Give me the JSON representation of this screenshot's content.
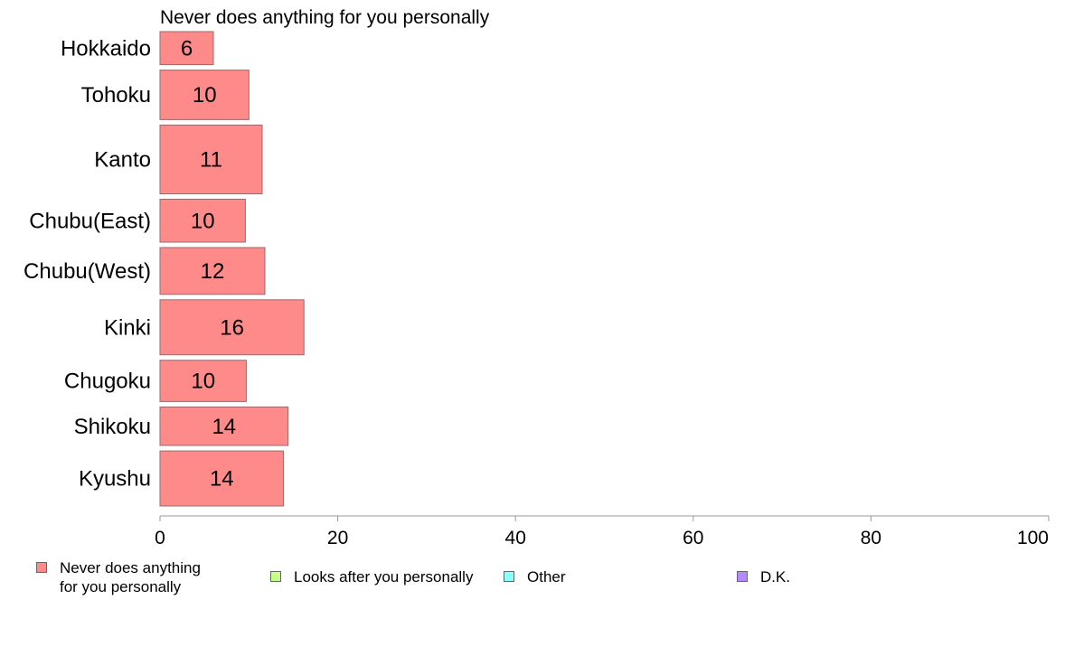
{
  "chart_data": {
    "type": "bar",
    "orientation": "horizontal",
    "title": "Never does anything for you personally",
    "categories": [
      "Hokkaido",
      "Tohoku",
      "Kanto",
      "Chubu(East)",
      "Chubu(West)",
      "Kinki",
      "Chugoku",
      "Shikoku",
      "Kyushu"
    ],
    "relative_widths": [
      0.6,
      0.9,
      1.25,
      0.78,
      0.85,
      1.0,
      0.75,
      0.7,
      1.0
    ],
    "series": [
      {
        "name": "Never does anything for you personally",
        "color": "#ff8a8a",
        "values": [
          6,
          10,
          11.5,
          9.6,
          11.8,
          16.2,
          9.7,
          14.4,
          13.9
        ],
        "labels": [
          "6",
          "10",
          "11",
          "10",
          "12",
          "16",
          "10",
          "14",
          "14"
        ]
      }
    ],
    "xlim": [
      0,
      100
    ],
    "xticks": [
      "0",
      "20",
      "40",
      "60",
      "80",
      "100"
    ],
    "legend": {
      "placement": "bottom",
      "items": [
        {
          "label": "Never does anything\nfor you personally",
          "color": "#ff8a8a"
        },
        {
          "label": "Looks after you personally",
          "color": "#c6ff8a"
        },
        {
          "label": "Other",
          "color": "#8affff"
        },
        {
          "label": "D.K.",
          "color": "#b58aff"
        }
      ]
    }
  }
}
